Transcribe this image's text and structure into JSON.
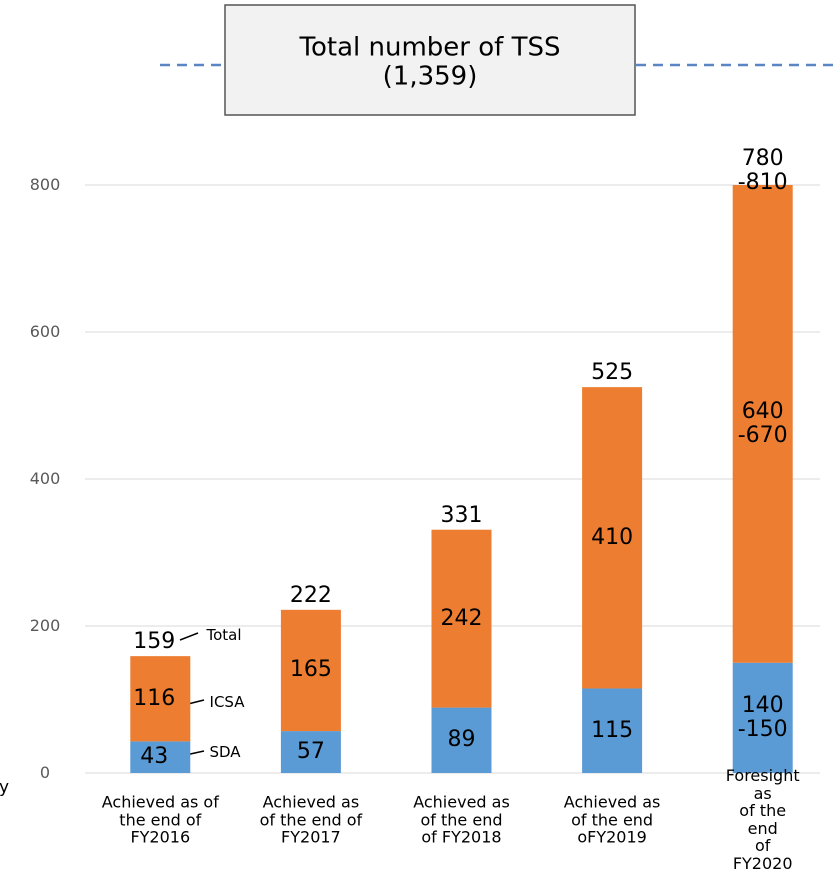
{
  "chart_data": {
    "type": "stacked_bar",
    "title": "Total number of TSS\n(1,359)",
    "categories": [
      "Achieved as of\nthe end of\nFY2016",
      "Achieved as\nof the end of\nFY2017",
      "Achieved as\nof the end\nof FY2018",
      "Achieved as\nof the end\noFY2019",
      "Foresight as\nof the end\nof FY2020"
    ],
    "series": [
      {
        "name": "SDA",
        "color": "#5b9bd5",
        "values": [
          43,
          57,
          89,
          115,
          150
        ],
        "value_labels": [
          "43",
          "57",
          "89",
          "115",
          "140\n-150"
        ]
      },
      {
        "name": "ICSA",
        "color": "#ed7d31",
        "values": [
          116,
          165,
          242,
          410,
          650
        ],
        "value_labels": [
          "116",
          "165",
          "242",
          "410",
          "640\n-670"
        ]
      }
    ],
    "total_labels": [
      "159",
      "222",
      "331",
      "525",
      "780 -810"
    ],
    "annotations": [
      "Total",
      "ICSA",
      "SDA",
      "y"
    ],
    "ylim": [
      0,
      800
    ],
    "yticks": [
      0,
      200,
      400,
      600,
      800
    ],
    "grid": true
  }
}
